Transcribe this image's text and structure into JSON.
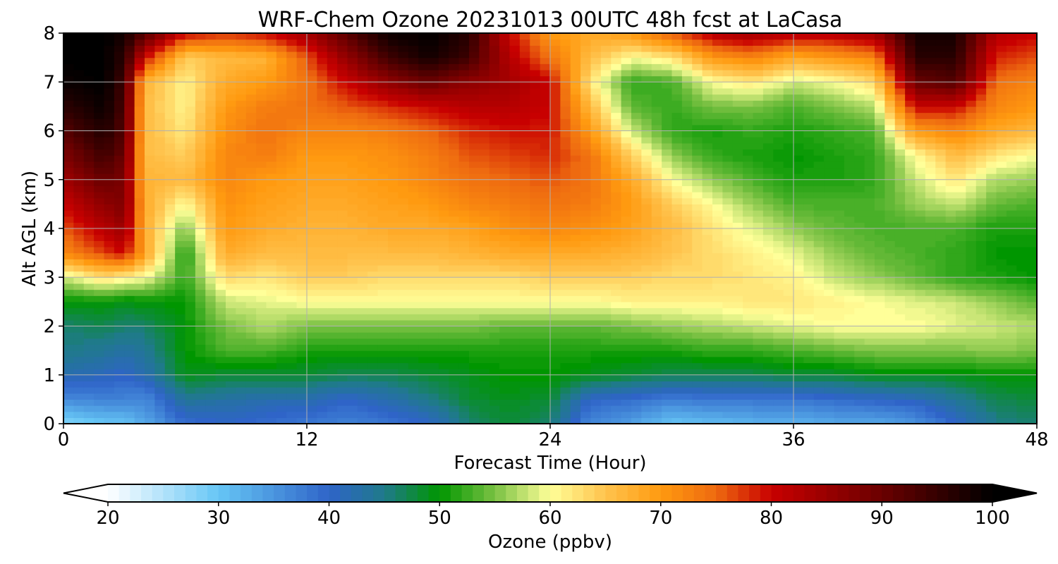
{
  "chart_data": {
    "type": "heatmap",
    "title": "WRF-Chem Ozone  20231013 00UTC 48h fcst at LaCasa",
    "xlabel": "Forecast Time (Hour)",
    "ylabel": "Alt AGL (km)",
    "xlim": [
      0,
      48
    ],
    "ylim": [
      0,
      8
    ],
    "xticks": [
      0,
      12,
      24,
      36,
      48
    ],
    "yticks": [
      0,
      1,
      2,
      3,
      4,
      5,
      6,
      7,
      8
    ],
    "grid": true,
    "colorbar": {
      "label": "Ozone  (ppbv)",
      "min": 20,
      "max": 100,
      "ticks": [
        20,
        30,
        40,
        50,
        60,
        70,
        80,
        90,
        100
      ],
      "extend": "both",
      "colors": [
        {
          "v": 20,
          "c": "#ffffff"
        },
        {
          "v": 30,
          "c": "#66c6f5"
        },
        {
          "v": 40,
          "c": "#2f64c8"
        },
        {
          "v": 45,
          "c": "#1f7a8a"
        },
        {
          "v": 50,
          "c": "#009600"
        },
        {
          "v": 55,
          "c": "#7ac143"
        },
        {
          "v": 60,
          "c": "#ffff99"
        },
        {
          "v": 65,
          "c": "#ffc34d"
        },
        {
          "v": 70,
          "c": "#ff9a10"
        },
        {
          "v": 75,
          "c": "#ee6a10"
        },
        {
          "v": 80,
          "c": "#c80000"
        },
        {
          "v": 90,
          "c": "#6a0000"
        },
        {
          "v": 100,
          "c": "#000000"
        }
      ]
    },
    "x": [
      0,
      2,
      3,
      4,
      6,
      8,
      10,
      12,
      14,
      16,
      18,
      20,
      22,
      24,
      26,
      28,
      30,
      32,
      34,
      36,
      38,
      40,
      42,
      44,
      46,
      48
    ],
    "y": [
      0,
      0.5,
      1,
      1.5,
      2,
      2.5,
      3,
      3.5,
      4,
      4.5,
      5,
      5.5,
      6,
      6.5,
      7,
      7.5,
      8
    ],
    "z": [
      [
        28,
        30,
        30,
        33,
        39,
        40,
        39,
        38,
        37,
        38,
        40,
        46,
        48,
        46,
        36,
        34,
        30,
        31,
        32,
        32,
        33,
        33,
        35,
        40,
        45,
        46
      ],
      [
        36,
        37,
        37,
        36,
        44,
        43,
        42,
        42,
        40,
        42,
        45,
        48,
        49,
        48,
        40,
        39,
        37,
        38,
        38,
        38,
        39,
        40,
        41,
        44,
        47,
        48
      ],
      [
        42,
        41,
        40,
        42,
        49,
        48,
        48,
        48,
        47,
        47,
        48,
        49,
        50,
        50,
        49,
        48,
        47,
        47,
        47,
        48,
        48,
        49,
        49,
        49,
        50,
        50
      ],
      [
        45,
        44,
        43,
        44,
        50,
        53,
        53,
        51,
        51,
        51,
        51,
        51,
        51,
        51,
        51,
        51,
        51,
        52,
        52,
        53,
        54,
        55,
        55,
        55,
        56,
        55
      ],
      [
        46,
        47,
        46,
        46,
        50,
        55,
        57,
        55,
        55,
        55,
        55,
        55,
        54,
        54,
        54,
        55,
        56,
        57,
        58,
        59,
        60,
        60,
        60,
        59,
        58,
        57
      ],
      [
        50,
        50,
        49,
        50,
        50,
        58,
        59,
        60,
        60,
        60,
        60,
        60,
        60,
        60,
        60,
        61,
        61,
        61,
        62,
        62,
        61,
        60,
        59,
        58,
        56,
        54
      ],
      [
        58,
        63,
        61,
        60,
        52,
        63,
        62,
        64,
        64,
        63,
        63,
        63,
        63,
        64,
        64,
        64,
        63,
        63,
        62,
        61,
        58,
        56,
        54,
        52,
        51,
        50
      ],
      [
        72,
        77,
        80,
        69,
        51,
        68,
        66,
        66,
        66,
        66,
        66,
        67,
        68,
        68,
        68,
        67,
        65,
        63,
        61,
        59,
        56,
        54,
        53,
        52,
        50,
        50
      ],
      [
        76,
        82,
        85,
        68,
        55,
        70,
        68,
        67,
        67,
        68,
        68,
        69,
        71,
        72,
        71,
        69,
        66,
        62,
        59,
        56,
        54,
        53,
        53,
        53,
        51,
        51
      ],
      [
        80,
        86,
        88,
        68,
        60,
        71,
        69,
        68,
        68,
        69,
        70,
        72,
        73,
        74,
        73,
        70,
        64,
        60,
        56,
        53,
        53,
        53,
        56,
        58,
        54,
        53
      ],
      [
        84,
        90,
        88,
        67,
        66,
        72,
        70,
        69,
        69,
        70,
        72,
        74,
        75,
        76,
        74,
        68,
        60,
        56,
        53,
        51,
        51,
        52,
        58,
        62,
        57,
        56
      ],
      [
        88,
        94,
        90,
        66,
        64,
        72,
        73,
        70,
        70,
        71,
        73,
        76,
        77,
        78,
        74,
        64,
        56,
        52,
        51,
        50,
        51,
        52,
        60,
        66,
        62,
        60
      ],
      [
        92,
        97,
        92,
        66,
        62,
        71,
        74,
        72,
        72,
        73,
        75,
        78,
        79,
        79,
        70,
        58,
        52,
        51,
        52,
        51,
        52,
        53,
        70,
        72,
        68,
        66
      ],
      [
        96,
        99,
        93,
        66,
        61,
        70,
        73,
        74,
        76,
        78,
        80,
        82,
        82,
        80,
        66,
        54,
        52,
        55,
        55,
        53,
        55,
        57,
        80,
        80,
        72,
        70
      ],
      [
        99,
        100,
        94,
        67,
        61,
        68,
        70,
        74,
        80,
        86,
        90,
        86,
        84,
        80,
        62,
        52,
        53,
        60,
        62,
        58,
        60,
        63,
        90,
        92,
        74,
        72
      ],
      [
        100,
        100,
        96,
        80,
        64,
        66,
        67,
        76,
        86,
        94,
        98,
        94,
        82,
        74,
        66,
        60,
        62,
        70,
        72,
        68,
        70,
        72,
        96,
        96,
        78,
        76
      ],
      [
        100,
        100,
        98,
        92,
        80,
        78,
        80,
        84,
        92,
        99,
        100,
        96,
        80,
        70,
        68,
        70,
        76,
        82,
        84,
        82,
        82,
        84,
        98,
        98,
        82,
        80
      ]
    ]
  }
}
